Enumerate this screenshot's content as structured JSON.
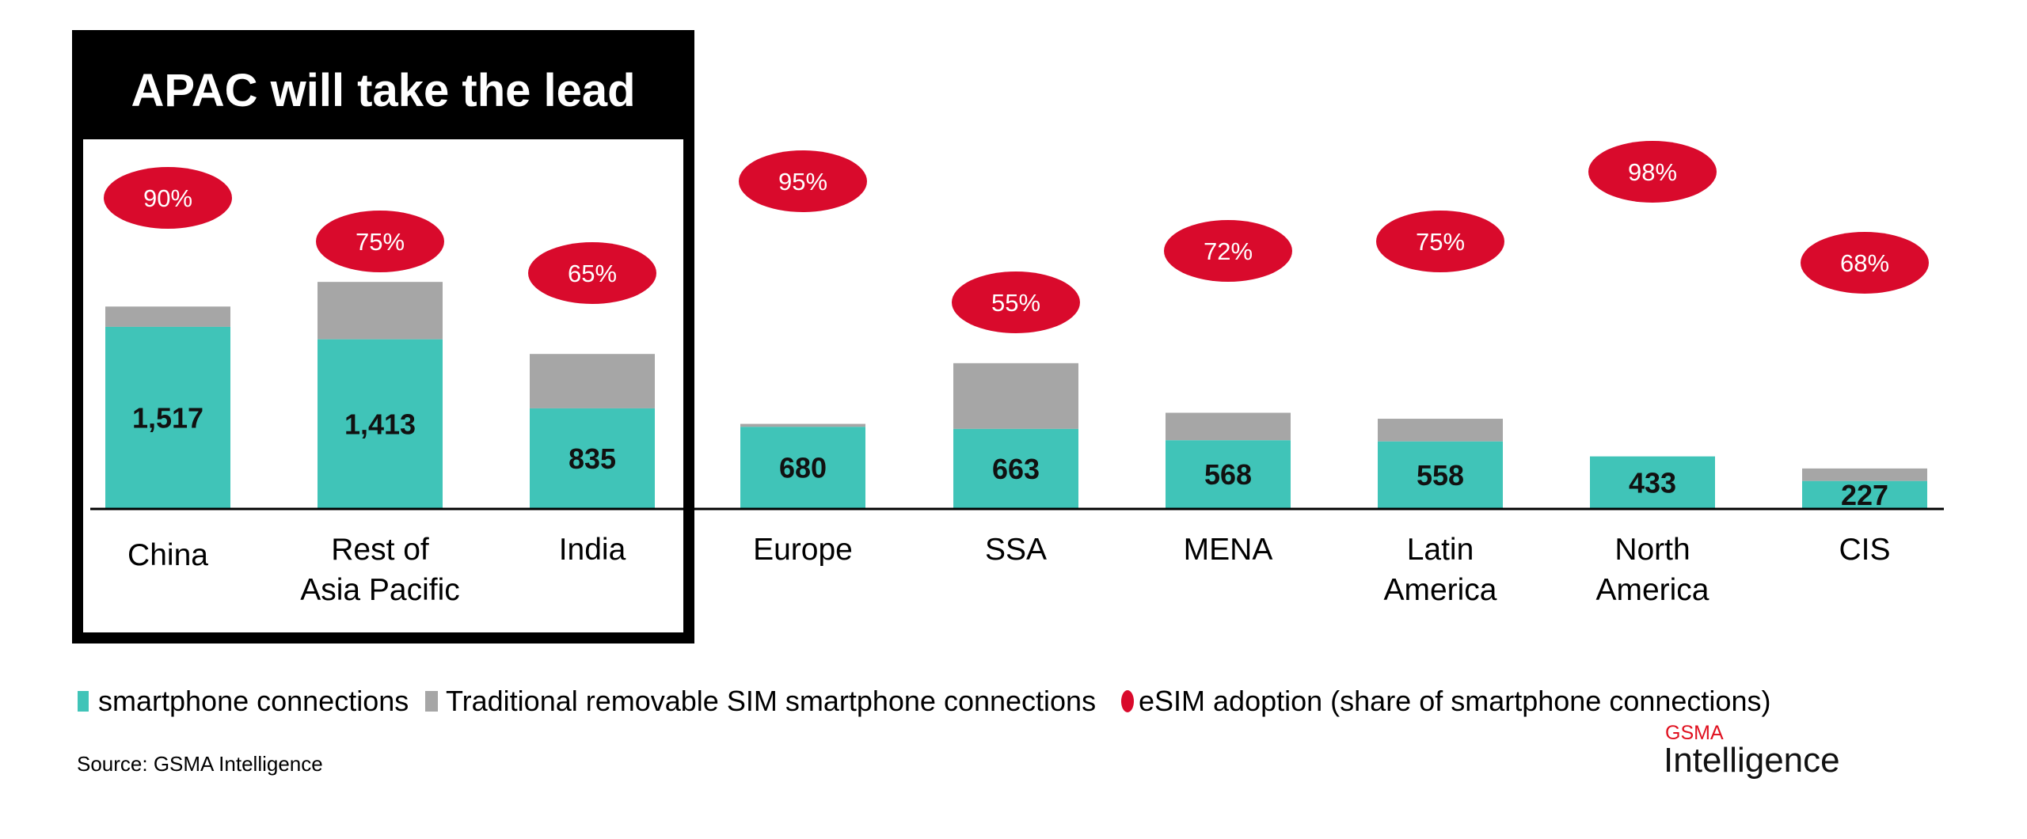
{
  "chart_data": {
    "type": "bar",
    "stacked": true,
    "title": "APAC will take the lead",
    "categories": [
      [
        "China"
      ],
      [
        "Rest of",
        "Asia Pacific"
      ],
      [
        "India"
      ],
      [
        "Europe"
      ],
      [
        "SSA"
      ],
      [
        "MENA"
      ],
      [
        "Latin",
        "America"
      ],
      [
        "North",
        "America"
      ],
      [
        "CIS"
      ]
    ],
    "series": [
      {
        "name": "smartphone connections",
        "color": "#40c4b8",
        "values": [
          1517,
          1413,
          835,
          680,
          663,
          568,
          558,
          433,
          227
        ],
        "labels": [
          "1,517",
          "1,413",
          "835",
          "680",
          "663",
          "568",
          "558",
          "433",
          "227"
        ]
      },
      {
        "name": "Traditional removable SIM smartphone connections",
        "color": "#a6a6a6",
        "values": [
          170,
          480,
          455,
          25,
          550,
          230,
          190,
          0,
          105
        ],
        "estimated": true
      }
    ],
    "esim_adoption": {
      "name": "eSIM adoption (share of smartphone connections)",
      "color": "#d90a2c",
      "labels": [
        "90%",
        "75%",
        "65%",
        "95%",
        "55%",
        "72%",
        "75%",
        "98%",
        "68%"
      ],
      "values": [
        90,
        75,
        65,
        95,
        55,
        72,
        75,
        98,
        68
      ]
    },
    "highlight_group": {
      "label": "APAC will take the lead",
      "categories": [
        "China",
        "Rest of Asia Pacific",
        "India"
      ]
    },
    "yaxis_visible": false,
    "grid": false,
    "legend_placement": "bottom-left"
  },
  "footer": {
    "source": "Source: GSMA Intelligence",
    "logo_top": "GSMA",
    "logo_bottom": "Intelligence"
  }
}
